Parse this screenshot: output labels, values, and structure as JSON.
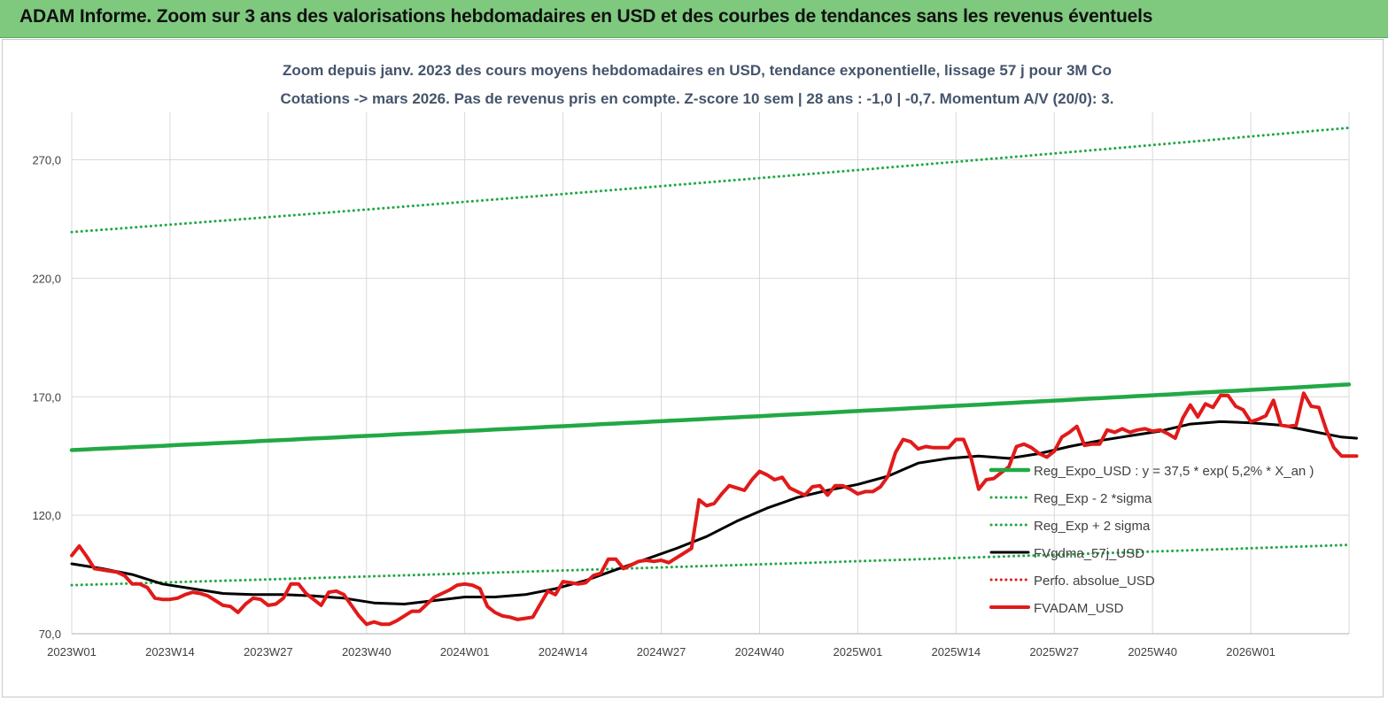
{
  "banner": {
    "title": "ADAM Informe. Zoom sur 3 ans des valorisations hebdomadaires en USD et des courbes de tendances sans les revenus éventuels"
  },
  "chart_data": {
    "type": "line",
    "title": "Zoom depuis janv. 2023 des cours moyens hebdomadaires en USD, tendance exponentielle, lissage 57 j pour 3M Co",
    "subtitle": "Cotations -> mars 2026. Pas de revenus pris en compte. Z-score 10 sem  | 28 ans : -1,0 | -0,7. Momentum A/V (20/0): 3.",
    "ylim": [
      70,
      290
    ],
    "yticks": [
      70,
      120,
      170,
      220,
      270
    ],
    "ytick_labels": [
      "70,0",
      "120,0",
      "170,0",
      "220,0",
      "270,0"
    ],
    "xtick_labels": [
      "2023W01",
      "2023W14",
      "2023W27",
      "2023W40",
      "2024W01",
      "2024W14",
      "2024W27",
      "2024W40",
      "2025W01",
      "2025W14",
      "2025W27",
      "2025W40",
      "2026W01"
    ],
    "xtick_index": [
      0,
      13,
      26,
      39,
      52,
      65,
      78,
      91,
      104,
      117,
      130,
      143,
      156
    ],
    "n_weeks": 170,
    "grid": true,
    "legend_position": "right",
    "series": [
      {
        "name": "Reg_Expo_USD : y = 37,5 * exp( 5,2% *  X_an )",
        "color": "#22a845",
        "style": "solid-thick",
        "start": 147.5,
        "end": 175.2
      },
      {
        "name": "Reg_Exp - 2 *sigma",
        "color": "#22a845",
        "style": "dotted",
        "start": 90.5,
        "end": 107.5
      },
      {
        "name": "Reg_Exp + 2 sigma",
        "color": "#22a845",
        "style": "dotted",
        "start": 239.5,
        "end": 283.5
      },
      {
        "name": "FVgdma_57j_USD",
        "color": "#000000",
        "style": "solid",
        "points": [
          [
            0,
            99.5
          ],
          [
            4,
            97.5
          ],
          [
            8,
            95
          ],
          [
            12,
            91
          ],
          [
            16,
            89
          ],
          [
            20,
            87
          ],
          [
            24,
            86.5
          ],
          [
            28,
            86.5
          ],
          [
            32,
            86
          ],
          [
            36,
            85
          ],
          [
            40,
            83
          ],
          [
            44,
            82.5
          ],
          [
            48,
            84
          ],
          [
            52,
            85.5
          ],
          [
            56,
            85.5
          ],
          [
            60,
            86.5
          ],
          [
            64,
            89
          ],
          [
            68,
            92.5
          ],
          [
            72,
            97
          ],
          [
            76,
            101.5
          ],
          [
            80,
            106
          ],
          [
            84,
            111
          ],
          [
            88,
            117.5
          ],
          [
            92,
            123
          ],
          [
            96,
            127.5
          ],
          [
            100,
            130.5
          ],
          [
            104,
            133
          ],
          [
            108,
            136.5
          ],
          [
            112,
            142
          ],
          [
            116,
            144
          ],
          [
            120,
            145
          ],
          [
            124,
            144
          ],
          [
            128,
            146
          ],
          [
            132,
            149
          ],
          [
            136,
            151.5
          ],
          [
            140,
            153.5
          ],
          [
            144,
            155.5
          ],
          [
            148,
            158.5
          ],
          [
            152,
            159.5
          ],
          [
            156,
            159
          ],
          [
            160,
            158
          ],
          [
            164,
            155.5
          ],
          [
            168,
            153
          ],
          [
            170,
            152.5
          ]
        ]
      },
      {
        "name": "Perfo. absolue_USD",
        "color": "#e11a1a",
        "style": "dotted",
        "points": []
      },
      {
        "name": "FVADAM_USD",
        "color": "#e11a1a",
        "style": "solid-thick",
        "points": [
          [
            0,
            103
          ],
          [
            1,
            107
          ],
          [
            2,
            102.5
          ],
          [
            3,
            97.5
          ],
          [
            5,
            96.5
          ],
          [
            6,
            96
          ],
          [
            7,
            94.5
          ],
          [
            8,
            91
          ],
          [
            9,
            91
          ],
          [
            10,
            89.5
          ],
          [
            11,
            85
          ],
          [
            12,
            84.5
          ],
          [
            13,
            84.5
          ],
          [
            14,
            85
          ],
          [
            15,
            86.5
          ],
          [
            16,
            87.5
          ],
          [
            17,
            87
          ],
          [
            18,
            86
          ],
          [
            19,
            84
          ],
          [
            20,
            82
          ],
          [
            21,
            81.5
          ],
          [
            22,
            79
          ],
          [
            23,
            82.5
          ],
          [
            24,
            85
          ],
          [
            25,
            84.5
          ],
          [
            26,
            82
          ],
          [
            27,
            82.5
          ],
          [
            28,
            85
          ],
          [
            29,
            91
          ],
          [
            30,
            91
          ],
          [
            31,
            87
          ],
          [
            32,
            84.5
          ],
          [
            33,
            82
          ],
          [
            34,
            87.5
          ],
          [
            35,
            88
          ],
          [
            36,
            86.5
          ],
          [
            37,
            82
          ],
          [
            38,
            77.5
          ],
          [
            39,
            74
          ],
          [
            40,
            75
          ],
          [
            41,
            74
          ],
          [
            42,
            74
          ],
          [
            43,
            75.5
          ],
          [
            44,
            77.5
          ],
          [
            45,
            79.5
          ],
          [
            46,
            79.5
          ],
          [
            47,
            82.5
          ],
          [
            48,
            85.5
          ],
          [
            49,
            87
          ],
          [
            50,
            88.5
          ],
          [
            51,
            90.5
          ],
          [
            52,
            91
          ],
          [
            53,
            90.5
          ],
          [
            54,
            89
          ],
          [
            55,
            81.5
          ],
          [
            56,
            79
          ],
          [
            57,
            77.5
          ],
          [
            58,
            77
          ],
          [
            59,
            76
          ],
          [
            60,
            76.5
          ],
          [
            61,
            77
          ],
          [
            62,
            82.5
          ],
          [
            63,
            88
          ],
          [
            64,
            86.5
          ],
          [
            65,
            92
          ],
          [
            66,
            91.5
          ],
          [
            67,
            91
          ],
          [
            68,
            91.5
          ],
          [
            69,
            94.5
          ],
          [
            70,
            95.5
          ],
          [
            71,
            101.5
          ],
          [
            72,
            101.5
          ],
          [
            73,
            97.5
          ],
          [
            74,
            99
          ],
          [
            75,
            100.5
          ],
          [
            76,
            101
          ],
          [
            77,
            100.5
          ],
          [
            78,
            101
          ],
          [
            79,
            100
          ],
          [
            80,
            102
          ],
          [
            81,
            104
          ],
          [
            82,
            106
          ],
          [
            83,
            126.5
          ],
          [
            84,
            124
          ],
          [
            85,
            125
          ],
          [
            86,
            129
          ],
          [
            87,
            132.5
          ],
          [
            88,
            131.5
          ],
          [
            89,
            130.5
          ],
          [
            90,
            135
          ],
          [
            91,
            138.5
          ],
          [
            92,
            137
          ],
          [
            93,
            135
          ],
          [
            94,
            136
          ],
          [
            95,
            131.5
          ],
          [
            96,
            130
          ],
          [
            97,
            128.5
          ],
          [
            98,
            132
          ],
          [
            99,
            132.5
          ],
          [
            100,
            128.5
          ],
          [
            101,
            132.5
          ],
          [
            102,
            132.5
          ],
          [
            103,
            131
          ],
          [
            104,
            129
          ],
          [
            105,
            130
          ],
          [
            106,
            130
          ],
          [
            107,
            132
          ],
          [
            108,
            136.5
          ],
          [
            109,
            146.5
          ],
          [
            110,
            152
          ],
          [
            111,
            151
          ],
          [
            112,
            148
          ],
          [
            113,
            149
          ],
          [
            114,
            148.5
          ],
          [
            115,
            148.5
          ],
          [
            116,
            148.5
          ],
          [
            117,
            152
          ],
          [
            118,
            152
          ],
          [
            119,
            144
          ],
          [
            120,
            131
          ],
          [
            121,
            135
          ],
          [
            122,
            135.5
          ],
          [
            123,
            138
          ],
          [
            124,
            140.5
          ],
          [
            125,
            149
          ],
          [
            126,
            150
          ],
          [
            127,
            148.5
          ],
          [
            128,
            146
          ],
          [
            129,
            144.5
          ],
          [
            130,
            147
          ],
          [
            131,
            153
          ],
          [
            132,
            155
          ],
          [
            133,
            157.5
          ],
          [
            134,
            149.5
          ],
          [
            135,
            150
          ],
          [
            136,
            150
          ],
          [
            137,
            156
          ],
          [
            138,
            155
          ],
          [
            139,
            156.5
          ],
          [
            140,
            155
          ],
          [
            141,
            156
          ],
          [
            142,
            156.5
          ],
          [
            143,
            155.5
          ],
          [
            144,
            156
          ],
          [
            145,
            154.5
          ],
          [
            146,
            152.5
          ],
          [
            147,
            161
          ],
          [
            148,
            166.5
          ],
          [
            149,
            161.5
          ],
          [
            150,
            167
          ],
          [
            151,
            165.5
          ],
          [
            152,
            170.5
          ],
          [
            153,
            170.5
          ],
          [
            154,
            166
          ],
          [
            155,
            164.5
          ],
          [
            156,
            159.5
          ],
          [
            157,
            160.5
          ],
          [
            158,
            162
          ],
          [
            159,
            168.5
          ],
          [
            160,
            158
          ],
          [
            161,
            157.5
          ],
          [
            162,
            158
          ],
          [
            163,
            171.5
          ],
          [
            164,
            166
          ],
          [
            165,
            165.5
          ],
          [
            166,
            156
          ],
          [
            167,
            148.5
          ],
          [
            168,
            145
          ],
          [
            170,
            145
          ]
        ]
      }
    ]
  }
}
